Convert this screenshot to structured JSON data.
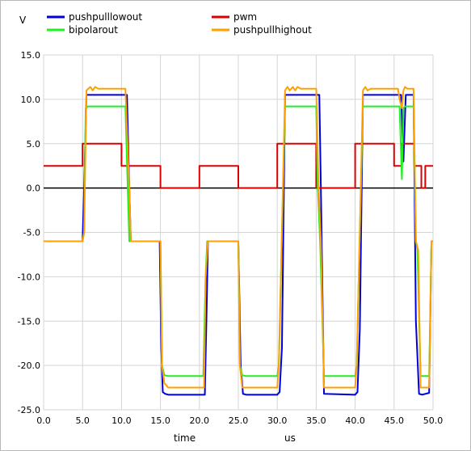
{
  "chart_data": {
    "type": "line",
    "ylabel": "V",
    "xlabel": "time",
    "xunit": "us",
    "xlim": [
      0,
      50
    ],
    "ylim": [
      -25,
      15
    ],
    "x_ticks": [
      "0.0",
      "5.0",
      "10.0",
      "15.0",
      "20.0",
      "25.0",
      "30.0",
      "35.0",
      "40.0",
      "45.0",
      "50.0"
    ],
    "y_ticks": [
      "15.0",
      "10.0",
      "5.0",
      "0.0",
      "-5.0",
      "-10.0",
      "-15.0",
      "-20.0",
      "-25.0"
    ],
    "grid": true,
    "zero_line": true,
    "legend_placement": "top",
    "series": [
      {
        "name": "pushpulllowout",
        "color": "#0000dd",
        "x": [
          0,
          5,
          5.2,
          5.5,
          10.7,
          11,
          11.2,
          14.9,
          15.1,
          15.3,
          15.6,
          16,
          20.7,
          20.9,
          21.1,
          25,
          25.3,
          25.6,
          26,
          30,
          30.3,
          30.6,
          31,
          35.4,
          35.6,
          36,
          40,
          40.3,
          40.6,
          41,
          45.9,
          46.2,
          46.5,
          47.5,
          47.8,
          48.2,
          48.6,
          49.5,
          49.8,
          50
        ],
        "values": [
          -6,
          -6,
          0,
          10.5,
          10.5,
          0,
          -6,
          -6,
          -18,
          -23,
          -23.2,
          -23.3,
          -23.3,
          -15,
          -6,
          -6,
          -20,
          -23.2,
          -23.3,
          -23.3,
          -23,
          -18,
          10.5,
          10.5,
          0,
          -23.2,
          -23.3,
          -23,
          -16,
          10.5,
          10.5,
          3,
          10.5,
          10.5,
          -15,
          -23.2,
          -23.3,
          -23.1,
          -6,
          -6
        ]
      },
      {
        "name": "pwm",
        "color": "#dd0000",
        "x": [
          0,
          5,
          5,
          10,
          10,
          15,
          15,
          20,
          20,
          25,
          25,
          30,
          30,
          35,
          35,
          40,
          40,
          45,
          45,
          46,
          46,
          47.6,
          47.6,
          48.5,
          48.5,
          49,
          49,
          50
        ],
        "values": [
          2.5,
          2.5,
          5,
          5,
          2.5,
          2.5,
          0,
          0,
          2.5,
          2.5,
          0,
          0,
          5,
          5,
          0,
          0,
          5,
          5,
          2.5,
          2.5,
          5,
          5,
          2.5,
          2.5,
          0,
          0,
          2.5,
          2.5
        ]
      },
      {
        "name": "bipolarout",
        "color": "#22ee22",
        "x": [
          0,
          5,
          5.2,
          5.4,
          5.7,
          10.5,
          10.8,
          11,
          11.2,
          15,
          15.2,
          15.5,
          16,
          20.5,
          20.8,
          21,
          21.2,
          25,
          25.2,
          25.5,
          26,
          30,
          30.2,
          30.6,
          31,
          35,
          35.2,
          35.5,
          36,
          40,
          40.2,
          40.6,
          41,
          45.7,
          46,
          46.2,
          46.4,
          47.5,
          47.8,
          48,
          48.4,
          49.5,
          49.8,
          50
        ],
        "values": [
          -6,
          -6,
          -5,
          9,
          9.2,
          9.2,
          0,
          -6,
          -6,
          -6,
          -20,
          -21.1,
          -21.2,
          -21.2,
          -10,
          -6,
          -6,
          -6,
          -20,
          -21.1,
          -21.2,
          -21.2,
          -20,
          -5,
          9.2,
          9.2,
          0,
          -6,
          -21.2,
          -21.2,
          -20,
          -5,
          9.2,
          9.2,
          1,
          9,
          9.2,
          9.2,
          -6,
          -7,
          -21.2,
          -21.2,
          -6,
          -6
        ]
      },
      {
        "name": "pushpullhighout",
        "color": "#ffa000",
        "x": [
          0,
          5,
          5.2,
          5.5,
          6,
          6.3,
          6.6,
          7,
          10.5,
          11,
          11.2,
          15,
          15.2,
          15.5,
          16,
          20.6,
          20.8,
          21.1,
          25,
          25.2,
          25.5,
          30,
          30.2,
          30.6,
          31,
          31.3,
          31.6,
          32,
          32.3,
          32.6,
          33,
          35,
          35.3,
          35.6,
          36,
          40,
          40.2,
          40.6,
          41,
          41.3,
          41.6,
          42,
          45.5,
          45.7,
          46,
          46.2,
          46.4,
          46.7,
          47.5,
          47.8,
          48.1,
          48.4,
          49.5,
          49.8,
          50
        ],
        "values": [
          -6,
          -6,
          -5,
          11,
          11.4,
          11,
          11.4,
          11.2,
          11.2,
          0,
          -6,
          -6,
          -20,
          -22,
          -22.5,
          -22.5,
          -10,
          -6,
          -6,
          -20,
          -22.5,
          -22.5,
          -20,
          -5,
          11,
          11.4,
          11,
          11.4,
          11,
          11.4,
          11.2,
          11.2,
          0,
          -6,
          -22.5,
          -22.5,
          -20,
          -5,
          11,
          11.4,
          11,
          11.2,
          11.2,
          10,
          9,
          11,
          11.4,
          11.2,
          11.2,
          -6,
          -7,
          -22.5,
          -22.5,
          -6,
          -6
        ]
      }
    ]
  }
}
